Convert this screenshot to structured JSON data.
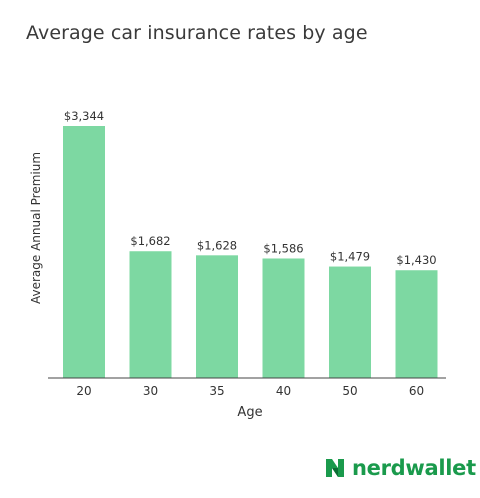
{
  "chart_data": {
    "type": "bar",
    "title": "Average car insurance rates by age",
    "xlabel": "Age",
    "ylabel": "Average Annual Premium",
    "categories": [
      "20",
      "30",
      "35",
      "40",
      "50",
      "60"
    ],
    "values": [
      3344,
      1682,
      1628,
      1586,
      1479,
      1430
    ],
    "value_labels": [
      "$3,344",
      "$1,682",
      "$1,628",
      "$1,586",
      "$1,479",
      "$1,430"
    ],
    "ylim": [
      0,
      3344
    ],
    "grid": false,
    "bar_color": "#7dd8a2"
  },
  "brand": {
    "name": "nerdwallet",
    "logo_icon": "nerdwallet-n-icon",
    "color": "#1a9a4c"
  }
}
